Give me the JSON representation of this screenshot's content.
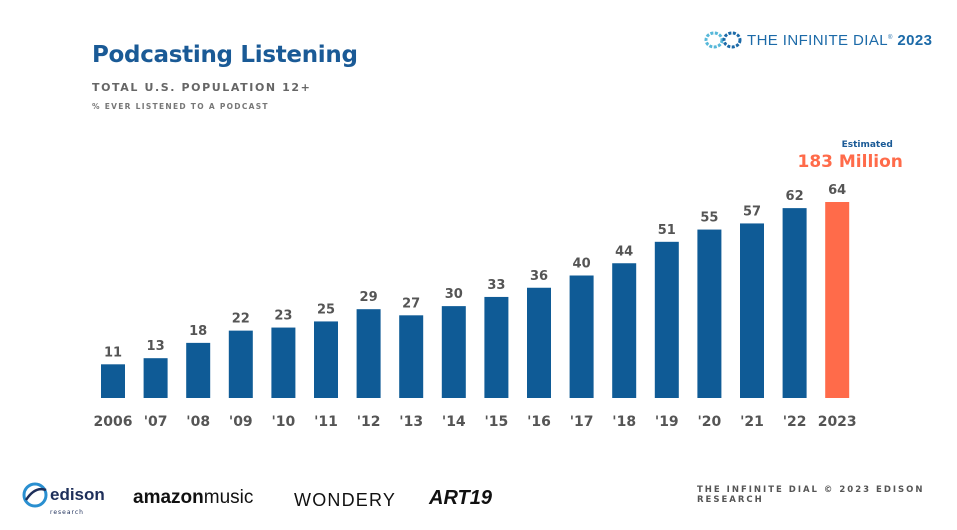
{
  "header": {
    "title": "Podcasting Listening",
    "subtitle": "TOTAL U.S. POPULATION 12+",
    "note": "% EVER LISTENED TO A PODCAST",
    "brand_prefix": "THE INFINITE DIAL",
    "brand_year": "2023",
    "brand_mark": "®"
  },
  "footer": {
    "credit": "THE INFINITE DIAL   © 2023 EDISON RESEARCH",
    "logos": {
      "edison_word": "edison",
      "edison_sub": "research",
      "amazon": "amazon",
      "amazon_music": "music",
      "wondery": "WONDERY",
      "art19": "ART19"
    }
  },
  "colors": {
    "bar": "#0f5b96",
    "highlight": "#ff6b4a",
    "title": "#1a5a96",
    "label": "#555555",
    "annotation_small": "#1a5a96"
  },
  "chart_data": {
    "type": "bar",
    "categories": [
      "2006",
      "'07",
      "'08",
      "'09",
      "'10",
      "'11",
      "'12",
      "'13",
      "'14",
      "'15",
      "'16",
      "'17",
      "'18",
      "'19",
      "'20",
      "'21",
      "'22",
      "2023"
    ],
    "values": [
      11,
      13,
      18,
      22,
      23,
      25,
      29,
      27,
      30,
      33,
      36,
      40,
      44,
      51,
      55,
      57,
      62,
      64
    ],
    "title": "Podcasting Listening",
    "subtitle": "TOTAL U.S. POPULATION 12+",
    "ylabel": "% EVER LISTENED TO A PODCAST",
    "ylim": [
      0,
      64
    ],
    "grid": false,
    "data_labels": true,
    "highlight_index": 17,
    "annotation": {
      "small": "Estimated",
      "big": "183 Million"
    }
  }
}
